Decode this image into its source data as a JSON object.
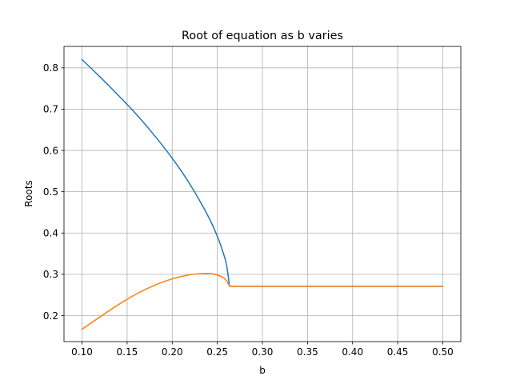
{
  "chart_data": {
    "type": "line",
    "title": "Root of equation as b varies",
    "xlabel": "b",
    "ylabel": "Roots",
    "xlim": [
      0.08,
      0.52
    ],
    "ylim": [
      0.137,
      0.852
    ],
    "grid": true,
    "xticks": [
      0.1,
      0.15,
      0.2,
      0.25,
      0.3,
      0.35,
      0.4,
      0.45,
      0.5
    ],
    "xtick_labels": [
      "0.10",
      "0.15",
      "0.20",
      "0.25",
      "0.30",
      "0.35",
      "0.40",
      "0.45",
      "0.50"
    ],
    "yticks": [
      0.2,
      0.3,
      0.4,
      0.5,
      0.6,
      0.7,
      0.8
    ],
    "ytick_labels": [
      "0.2",
      "0.3",
      "0.4",
      "0.5",
      "0.6",
      "0.7",
      "0.8"
    ],
    "series": [
      {
        "color": "#1f77b4",
        "x": [
          0.1,
          0.12,
          0.14,
          0.16,
          0.18,
          0.2,
          0.22,
          0.24,
          0.25,
          0.255,
          0.26,
          0.2635,
          0.27,
          0.3,
          0.35,
          0.4,
          0.45,
          0.5
        ],
        "y": [
          0.82,
          0.778,
          0.734,
          0.688,
          0.637,
          0.581,
          0.517,
          0.44,
          0.392,
          0.362,
          0.325,
          0.271,
          0.271,
          0.271,
          0.271,
          0.271,
          0.271,
          0.271
        ]
      },
      {
        "color": "#ff7f0e",
        "x": [
          0.1,
          0.12,
          0.14,
          0.16,
          0.18,
          0.2,
          0.22,
          0.235,
          0.245,
          0.255,
          0.26,
          0.2635,
          0.27,
          0.3,
          0.35,
          0.4,
          0.45,
          0.5
        ],
        "y": [
          0.167,
          0.197,
          0.226,
          0.252,
          0.273,
          0.289,
          0.299,
          0.302,
          0.301,
          0.294,
          0.285,
          0.271,
          0.271,
          0.271,
          0.271,
          0.271,
          0.271,
          0.271
        ]
      }
    ]
  }
}
